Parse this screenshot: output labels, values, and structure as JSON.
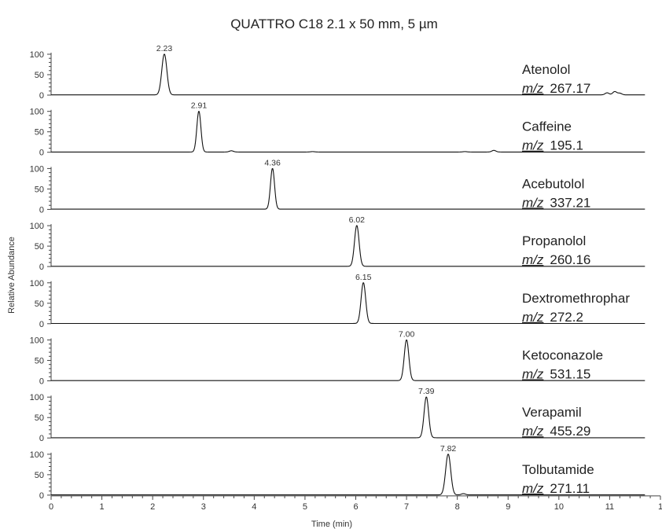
{
  "chart_data": {
    "type": "line",
    "title": "QUATTRO C18  2.1 x 50 mm, 5 µm",
    "xlabel": "Time (min)",
    "ylabel": "Relative Abundance",
    "xlim": [
      0,
      12
    ],
    "x_ticks": [
      "0",
      "1",
      "2",
      "3",
      "4",
      "5",
      "6",
      "7",
      "8",
      "9",
      "10",
      "11",
      "1"
    ],
    "ylim": [
      0,
      100
    ],
    "y_ticks": [
      "0",
      "50",
      "100"
    ],
    "mz_prefix": "m/z",
    "series": [
      {
        "name": "Atenolol",
        "mz": "267.17",
        "retention_time": 2.23,
        "rt_label": "2.23",
        "peak_width": 0.05,
        "minor_peaks": [
          {
            "x": 10.95,
            "y": 5
          },
          {
            "x": 11.1,
            "y": 8
          },
          {
            "x": 11.2,
            "y": 4
          }
        ],
        "trace_end": 11.7
      },
      {
        "name": "Caffeine",
        "mz": "195.1",
        "retention_time": 2.91,
        "rt_label": "2.91",
        "peak_width": 0.04,
        "minor_peaks": [
          {
            "x": 3.55,
            "y": 3
          },
          {
            "x": 5.15,
            "y": 1
          },
          {
            "x": 8.15,
            "y": 1
          },
          {
            "x": 8.72,
            "y": 4
          }
        ],
        "trace_end": 11.7
      },
      {
        "name": "Acebutolol",
        "mz": "337.21",
        "retention_time": 4.36,
        "rt_label": "4.36",
        "peak_width": 0.04,
        "minor_peaks": [],
        "trace_end": 11.7
      },
      {
        "name": "Propanolol",
        "mz": "260.16",
        "retention_time": 6.02,
        "rt_label": "6.02",
        "peak_width": 0.045,
        "minor_peaks": [],
        "trace_end": 11.7
      },
      {
        "name": "Dextromethrophar",
        "mz": "272.2",
        "retention_time": 6.15,
        "rt_label": "6.15",
        "peak_width": 0.045,
        "minor_peaks": [],
        "trace_end": 11.7
      },
      {
        "name": "Ketoconazole",
        "mz": "531.15",
        "retention_time": 7.0,
        "rt_label": "7.00",
        "peak_width": 0.045,
        "minor_peaks": [],
        "trace_end": 11.7
      },
      {
        "name": "Verapamil",
        "mz": "455.29",
        "retention_time": 7.39,
        "rt_label": "7.39",
        "peak_width": 0.045,
        "minor_peaks": [],
        "trace_end": 11.7
      },
      {
        "name": "Tolbutamide",
        "mz": "271.11",
        "retention_time": 7.82,
        "rt_label": "7.82",
        "peak_width": 0.05,
        "minor_peaks": [
          {
            "x": 8.12,
            "y": 3
          }
        ],
        "trace_end": 11.7
      }
    ]
  }
}
